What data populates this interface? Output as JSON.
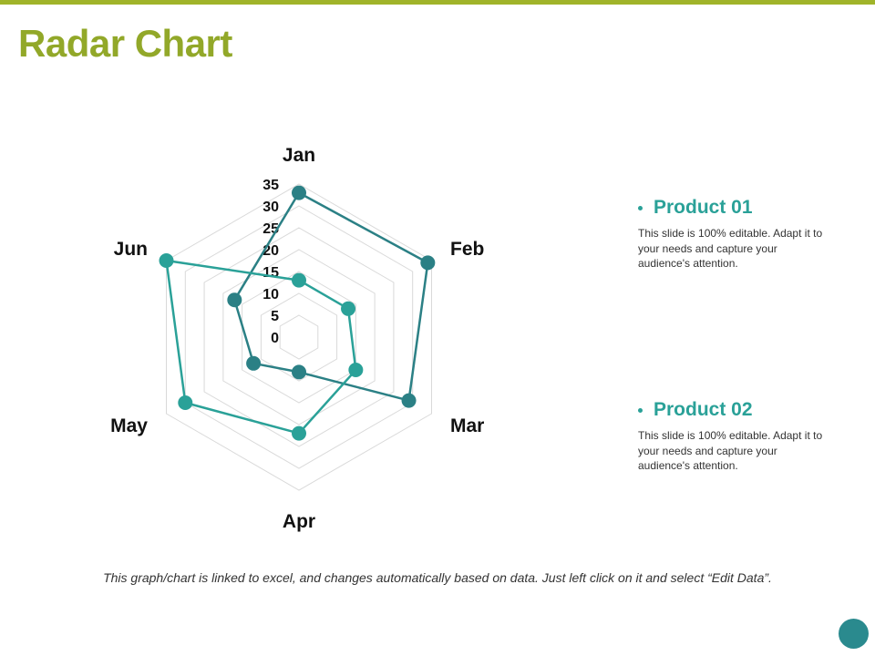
{
  "slide": {
    "title": "Radar Chart",
    "footer": "This graph/chart is linked to excel, and changes automatically based on data. Just left click on it and select “Edit Data”."
  },
  "legend": [
    {
      "name": "Product 01",
      "description": "This slide is 100% editable. Adapt it to your needs and capture your audience's attention.",
      "color": "#2aa198"
    },
    {
      "name": "Product 02",
      "description": "This slide is 100% editable. Adapt it to your needs and capture your audience's attention.",
      "color": "#2aa198"
    }
  ],
  "colors": {
    "accent_green": "#92a829",
    "teal_light": "#2aa198",
    "teal_dark": "#2b8085",
    "grid": "#d9d9d9"
  },
  "chart_data": {
    "type": "radar",
    "categories": [
      "Jan",
      "Feb",
      "Mar",
      "Apr",
      "May",
      "Jun"
    ],
    "radial_ticks": [
      "35",
      "30",
      "25",
      "20",
      "15",
      "10",
      "5",
      "0"
    ],
    "rlim": [
      0,
      35
    ],
    "grid": true,
    "series": [
      {
        "values": [
          33,
          34,
          29,
          8,
          12,
          17
        ],
        "color": "#2b8085"
      },
      {
        "values": [
          13,
          13,
          15,
          22,
          30,
          35
        ],
        "color": "#2aa198"
      }
    ]
  }
}
